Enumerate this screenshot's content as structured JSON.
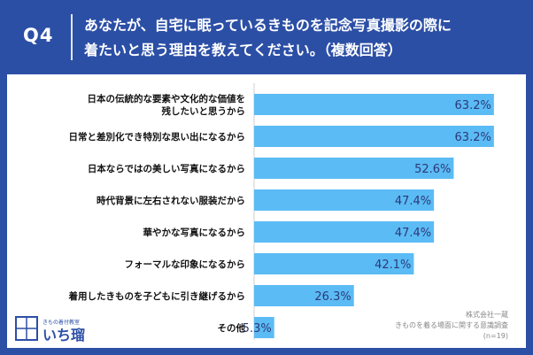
{
  "header": {
    "q_label": "Q4",
    "question_line1": "あなたが、自宅に眠っているきものを記念写真撮影の際に",
    "question_line2": "着たいと思う理由を教えてください。（複数回答）"
  },
  "chart_data": {
    "type": "bar",
    "orientation": "horizontal",
    "categories": [
      "日本の伝統的な要素や文化的な価値を\n残したいと思うから",
      "日常と差別化でき特別な思い出になるから",
      "日本ならではの美しい写真になるから",
      "時代背景に左右されない服装だから",
      "華やかな写真になるから",
      "フォーマルな印象になるから",
      "着用したきものを子どもに引き継げるから",
      "その他"
    ],
    "values": [
      63.2,
      63.2,
      52.6,
      47.4,
      47.4,
      42.1,
      26.3,
      5.3
    ],
    "value_suffix": "%",
    "xlim": [
      0,
      70
    ],
    "grid": false,
    "legend": "none",
    "bar_color": "#5BBBF5"
  },
  "footer": {
    "source_line1": "株式会社一蔵",
    "source_line2": "きものを着る場面に関する意識調査",
    "sample": "(n=19)",
    "logo_small": "きもの着付教室",
    "logo_main": "いち瑠"
  }
}
